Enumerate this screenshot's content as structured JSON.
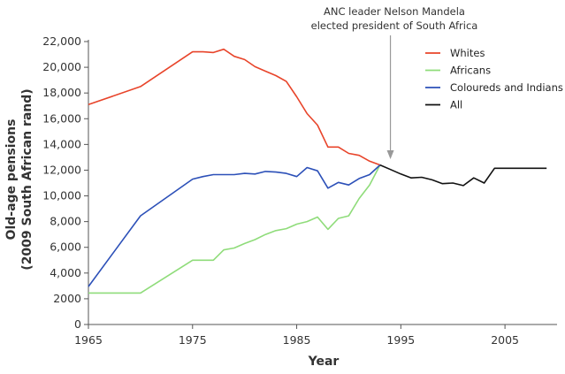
{
  "chart_data": {
    "type": "line",
    "title": "",
    "xlabel": "Year",
    "ylabel": [
      "Old-age pensions",
      "(2009 South African rand)"
    ],
    "xlim": [
      1965,
      2010
    ],
    "ylim": [
      0,
      22000
    ],
    "xticks": [
      1965,
      1975,
      1985,
      1995,
      2005
    ],
    "yticks": [
      0,
      2000,
      4000,
      6000,
      8000,
      10000,
      12000,
      14000,
      16000,
      18000,
      20000,
      22000
    ],
    "ytick_labels": [
      "0",
      "2000",
      "4,000",
      "6,000",
      "8,000",
      "10,000",
      "12,000",
      "14,000",
      "16,000",
      "18,000",
      "20,000",
      "22,000"
    ],
    "grid": false,
    "legend_position": "top-right",
    "annotation": {
      "lines": [
        "ANC leader Nelson Mandela",
        "elected president of South Africa"
      ],
      "x": 1994
    },
    "series": [
      {
        "name": "Whites",
        "color": "#e8442a",
        "x": [
          1965,
          1970,
          1975,
          1976,
          1977,
          1978,
          1979,
          1980,
          1981,
          1982,
          1983,
          1984,
          1985,
          1986,
          1987,
          1988,
          1989,
          1990,
          1991,
          1992,
          1993
        ],
        "y": [
          17100,
          18500,
          21200,
          21200,
          21150,
          21400,
          20850,
          20600,
          20050,
          19700,
          19350,
          18900,
          17700,
          16400,
          15500,
          13800,
          13800,
          13300,
          13150,
          12700,
          12400
        ]
      },
      {
        "name": "Africans",
        "color": "#8fdc7a",
        "x": [
          1965,
          1970,
          1975,
          1976,
          1977,
          1978,
          1979,
          1980,
          1981,
          1982,
          1983,
          1984,
          1985,
          1986,
          1987,
          1988,
          1989,
          1990,
          1991,
          1992,
          1993
        ],
        "y": [
          2450,
          2450,
          5000,
          5000,
          5000,
          5800,
          5950,
          6300,
          6600,
          7000,
          7300,
          7450,
          7800,
          8000,
          8350,
          7400,
          8250,
          8450,
          9800,
          10850,
          12400
        ]
      },
      {
        "name": "Coloureds and Indians",
        "color": "#2c50b8",
        "x": [
          1965,
          1970,
          1975,
          1976,
          1977,
          1978,
          1979,
          1980,
          1981,
          1982,
          1983,
          1984,
          1985,
          1986,
          1987,
          1988,
          1989,
          1990,
          1991,
          1992,
          1993
        ],
        "y": [
          2950,
          8450,
          11300,
          11500,
          11650,
          11650,
          11650,
          11750,
          11700,
          11900,
          11850,
          11750,
          11500,
          12200,
          11950,
          10600,
          11050,
          10850,
          11350,
          11650,
          12400
        ]
      },
      {
        "name": "All",
        "color": "#111111",
        "x": [
          1993,
          1994,
          1995,
          1996,
          1997,
          1998,
          1999,
          2000,
          2001,
          2002,
          2003,
          2004,
          2005,
          2006,
          2007,
          2008,
          2009
        ],
        "y": [
          12400,
          12050,
          11700,
          11400,
          11450,
          11250,
          10950,
          11000,
          10800,
          11400,
          11000,
          12150,
          12150,
          12150,
          12150,
          12150,
          12150
        ]
      }
    ]
  }
}
